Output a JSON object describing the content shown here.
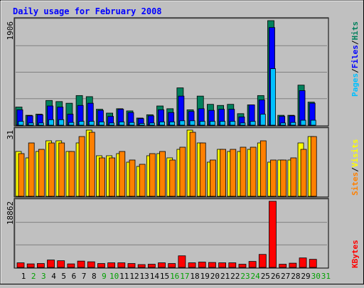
{
  "chart_data": [
    {
      "type": "bar",
      "title": "Daily usage for February 2008",
      "ytick_max": "1906",
      "ylim": [
        0,
        1906
      ],
      "categories": [
        "1",
        "2",
        "3",
        "4",
        "5",
        "6",
        "7",
        "8",
        "9",
        "10",
        "11",
        "12",
        "13",
        "14",
        "15",
        "16",
        "17",
        "18",
        "19",
        "20",
        "21",
        "22",
        "23",
        "24",
        "25",
        "26",
        "27",
        "28",
        "29",
        "30",
        "31"
      ],
      "weekend_days": [
        "2",
        "3",
        "9",
        "10",
        "16",
        "17",
        "23",
        "24",
        "30",
        "31"
      ],
      "right_axis_labels": [
        "Pages",
        "/",
        "Files",
        "/",
        "Hits"
      ],
      "series": [
        {
          "name": "Hits",
          "color": "#00805c",
          "values": [
            330,
            180,
            200,
            450,
            430,
            400,
            540,
            520,
            290,
            220,
            300,
            260,
            130,
            190,
            350,
            300,
            680,
            280,
            530,
            380,
            360,
            380,
            210,
            370,
            540,
            1906,
            180,
            180,
            730,
            420,
            0
          ]
        },
        {
          "name": "Files",
          "color": "#0000ff",
          "values": [
            280,
            170,
            190,
            350,
            330,
            200,
            360,
            400,
            270,
            160,
            290,
            230,
            120,
            170,
            280,
            230,
            530,
            250,
            300,
            270,
            290,
            290,
            150,
            370,
            460,
            1780,
            160,
            170,
            630,
            400,
            0
          ]
        },
        {
          "name": "Pages",
          "color": "#00c0ff",
          "values": [
            70,
            40,
            40,
            100,
            100,
            50,
            70,
            70,
            60,
            40,
            60,
            50,
            30,
            40,
            60,
            60,
            80,
            80,
            70,
            70,
            70,
            70,
            40,
            70,
            200,
            1030,
            40,
            50,
            90,
            90,
            0
          ]
        }
      ]
    },
    {
      "type": "bar",
      "ytick_max": "31",
      "ylim": [
        0,
        31
      ],
      "right_axis_labels": [
        "Sites",
        "/",
        "Visits"
      ],
      "series": [
        {
          "name": "Visits",
          "color": "#ffff00",
          "values": [
            21,
            18,
            21,
            26,
            26,
            21,
            25,
            31,
            19,
            19,
            20,
            16,
            14,
            19,
            20,
            18,
            22,
            31,
            25,
            16,
            22,
            21,
            21,
            22,
            25,
            16,
            17,
            17,
            25,
            28,
            0
          ]
        },
        {
          "name": "Sites",
          "color": "#ff8000",
          "values": [
            20,
            25,
            22,
            25,
            25,
            21,
            28,
            30,
            18,
            18,
            21,
            17,
            15,
            20,
            21,
            17,
            23,
            30,
            25,
            17,
            22,
            22,
            23,
            23,
            26,
            17,
            17,
            18,
            22,
            28,
            0
          ]
        }
      ]
    },
    {
      "type": "bar",
      "ytick_max": "18862",
      "ylim": [
        0,
        18862
      ],
      "right_axis_labels": [
        "KBytes"
      ],
      "series": [
        {
          "name": "KBytes",
          "color": "#ff0000",
          "values": [
            1300,
            1000,
            1100,
            2100,
            1900,
            1000,
            1800,
            1600,
            1100,
            1300,
            1300,
            1100,
            800,
            900,
            1300,
            1100,
            3300,
            1300,
            1500,
            1400,
            1300,
            1300,
            900,
            1700,
            3700,
            18862,
            900,
            1200,
            2700,
            2300,
            0
          ]
        }
      ]
    }
  ],
  "colors": {
    "background": "#c0c0c0",
    "plot_bg": "#c0c0c0",
    "title": "#0000ff",
    "weekday_label": "#000000",
    "weekend_label": "#00a000",
    "gridline": "#808080"
  }
}
